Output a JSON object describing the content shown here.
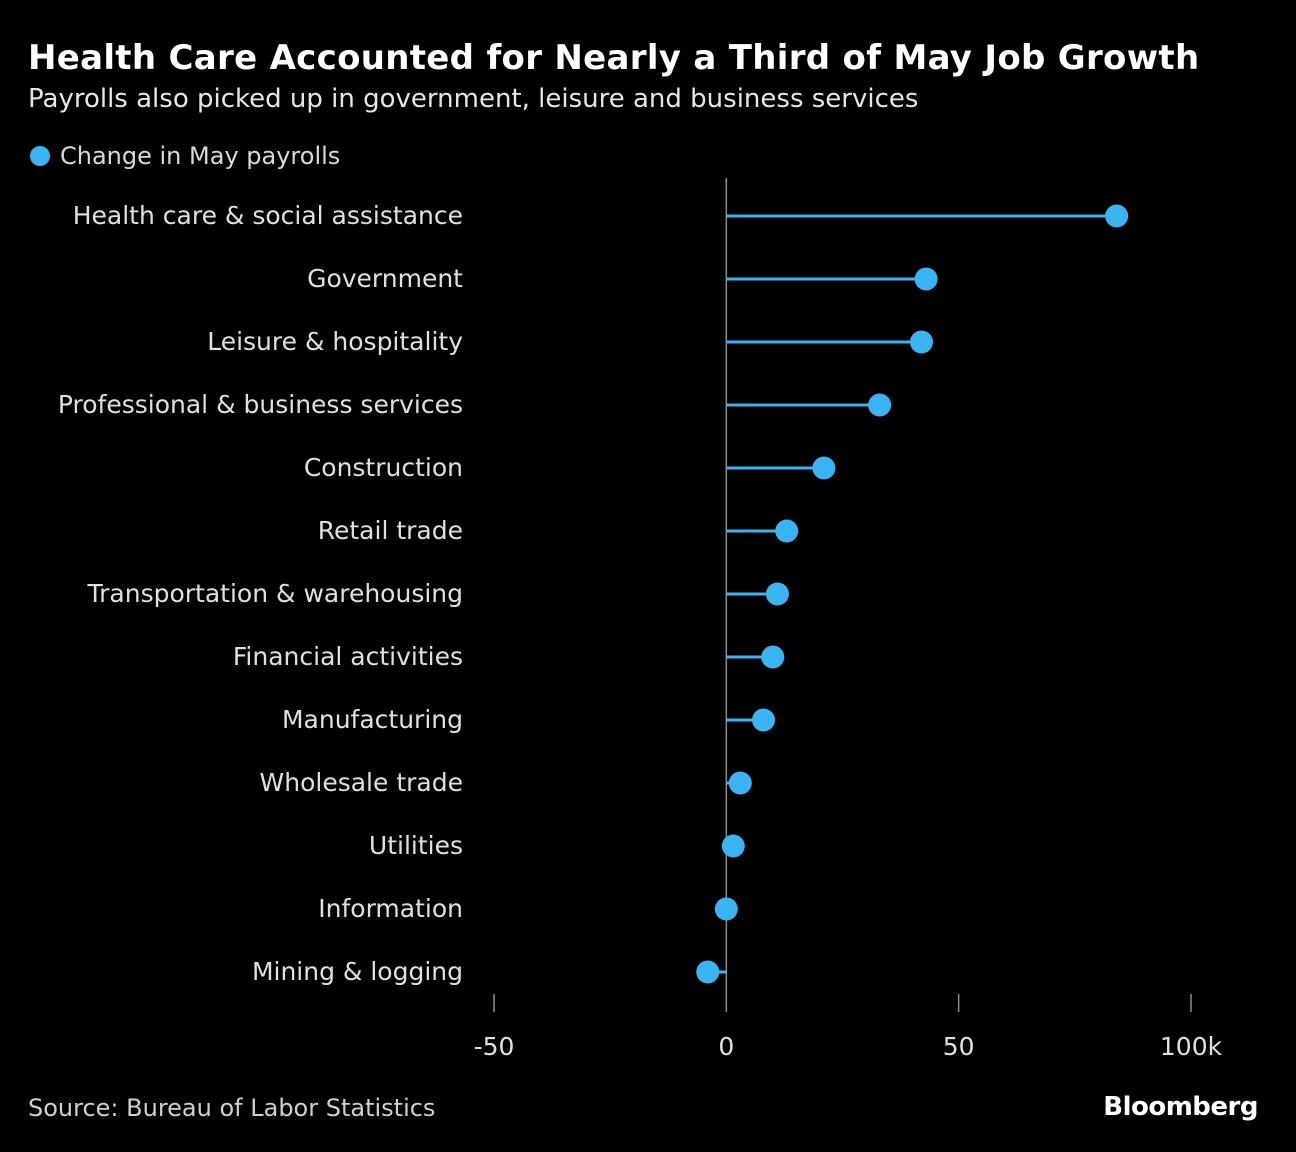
{
  "header": {
    "title": "Health Care Accounted for Nearly a Third of May Job Growth",
    "subtitle": "Payrolls also picked up in government, leisure and business services"
  },
  "legend": {
    "label": "Change in May payrolls"
  },
  "footer": {
    "source": "Source: Bureau of Labor Statistics",
    "brand": "Bloomberg"
  },
  "colors": {
    "accent": "#3ab4f2",
    "background": "#000000",
    "axis": "#8c8c8c"
  },
  "chart_data": {
    "type": "lollipop",
    "title": "Health Care Accounted for Nearly a Third of May Job Growth",
    "subtitle": "Payrolls also picked up in government, leisure and business services",
    "series": [
      {
        "name": "Change in May payrolls",
        "values": [
          84,
          43,
          42,
          33,
          21,
          13,
          11,
          10,
          8,
          3,
          1.5,
          0,
          -4
        ]
      }
    ],
    "categories": [
      "Health care & social assistance",
      "Government",
      "Leisure & hospitality",
      "Professional & business services",
      "Construction",
      "Retail trade",
      "Transportation & warehousing",
      "Financial activities",
      "Manufacturing",
      "Wholesale trade",
      "Utilities",
      "Information",
      "Mining & logging"
    ],
    "xlim": [
      -50,
      100
    ],
    "xticks": [
      -50,
      0,
      50,
      100
    ],
    "xtick_labels": [
      "-50",
      "0",
      "50",
      "100k"
    ],
    "xlabel": "",
    "ylabel": "",
    "grid": false,
    "legend_position": "top-left"
  }
}
